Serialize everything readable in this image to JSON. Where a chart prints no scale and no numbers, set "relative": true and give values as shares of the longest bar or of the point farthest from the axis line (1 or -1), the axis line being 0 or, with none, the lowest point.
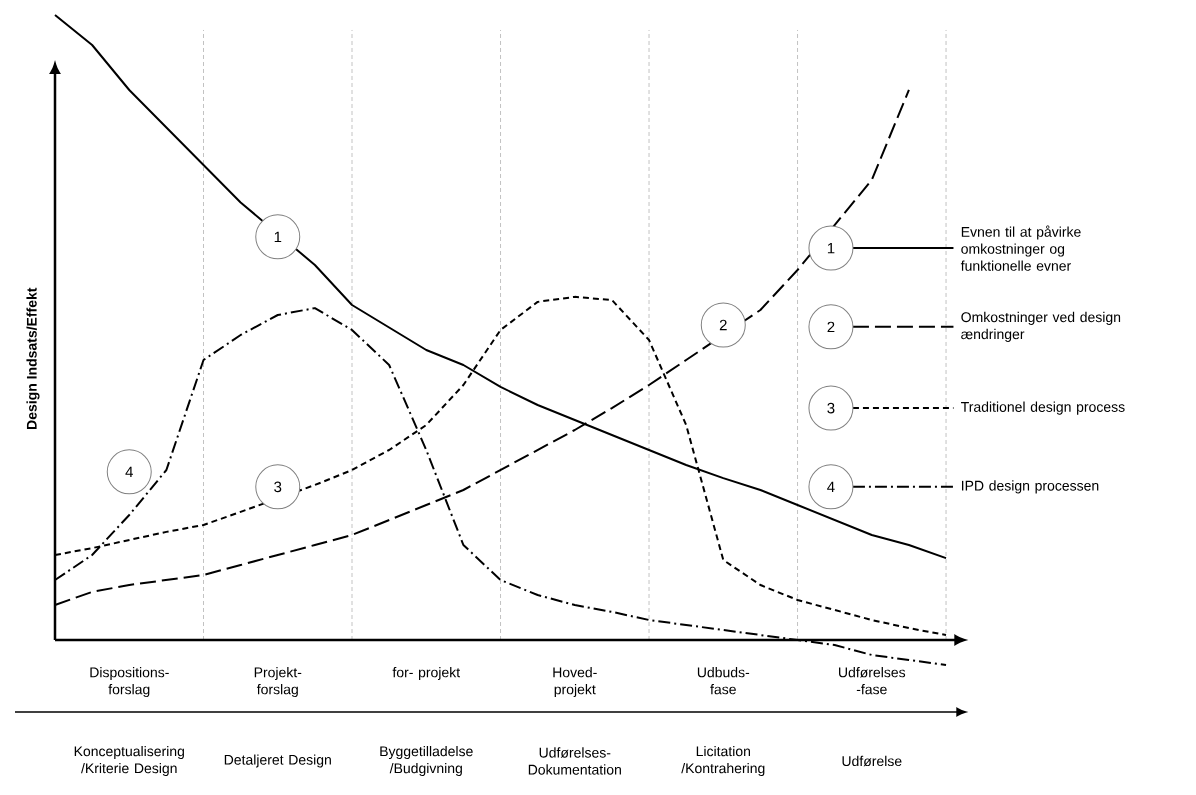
{
  "chart_data": {
    "type": "line",
    "relative": true,
    "legend": "right",
    "marker": "none",
    "ylabel": "Design Indsats/Effekt",
    "categories": [
      null,
      null,
      "Dispositions- forslag",
      null,
      null,
      null,
      "Projekt- forslag",
      null,
      null,
      null,
      "for- projekt",
      null,
      null,
      null,
      "Hoved- projekt",
      null,
      null,
      null,
      "Udbuds- fase",
      null,
      null,
      null,
      "Udførelses -fase",
      null,
      null
    ],
    "series": [
      {
        "name": "Evnen til at påvirke omkostninger og funktionelle evner",
        "color": "#000000",
        "line_style": "solid",
        "values": [
          1.0,
          0.952,
          0.88,
          0.82,
          0.76,
          0.7,
          null,
          0.6,
          0.536,
          0.5,
          0.464,
          0.44,
          0.405,
          0.376,
          0.352,
          0.328,
          0.304,
          0.28,
          0.259,
          0.24,
          0.216,
          0.192,
          0.168,
          0.152,
          0.131
        ]
      },
      {
        "name": "Omkostninger ved design ændringer",
        "color": "#000000",
        "line_style": "longdashed",
        "values": [
          0.056,
          0.077,
          0.088,
          0.096,
          0.104,
          0.12,
          0.136,
          0.152,
          0.168,
          0.192,
          0.216,
          0.24,
          0.272,
          0.304,
          0.336,
          0.371,
          0.408,
          0.448,
          null,
          0.528,
          0.592,
          0.664,
          0.736,
          0.88,
          null
        ]
      },
      {
        "name": "Traditionel design process",
        "color": "#000000",
        "line_style": "dashed",
        "values": [
          0.136,
          0.147,
          0.16,
          0.173,
          0.184,
          0.205,
          null,
          0.248,
          0.272,
          0.304,
          0.344,
          0.408,
          0.496,
          0.541,
          0.549,
          0.544,
          0.48,
          0.344,
          0.128,
          0.088,
          0.064,
          0.048,
          0.032,
          0.019,
          0.008
        ]
      },
      {
        "name": "IPD design processen",
        "color": "#000000",
        "line_style": "dashdot",
        "values": [
          0.096,
          0.136,
          0.2,
          0.272,
          0.448,
          0.488,
          0.52,
          0.531,
          0.496,
          0.44,
          0.304,
          0.152,
          0.096,
          0.072,
          0.056,
          0.045,
          0.032,
          0.024,
          0.016,
          0.008,
          0.0,
          -0.008,
          -0.024,
          -0.032,
          -0.04
        ]
      }
    ],
    "grid": "x",
    "annotations": [
      {
        "text": "1",
        "x": "Projekt- forslag",
        "y": 0.645
      },
      {
        "text": "2",
        "x": "Udbuds- fase",
        "y": 0.504
      },
      {
        "text": "3",
        "x": "Projekt- forslag",
        "y": 0.245
      },
      {
        "text": "4",
        "x": "Dispositions- forslag",
        "y": 0.269
      },
      "Konceptualisering /Kriterie Design",
      "Detaljeret Design",
      "Byggetilladelse /Budgivning",
      "Udførelses- Dokumentation",
      "Licitation /Kontrahering",
      "Udførelse"
    ]
  }
}
